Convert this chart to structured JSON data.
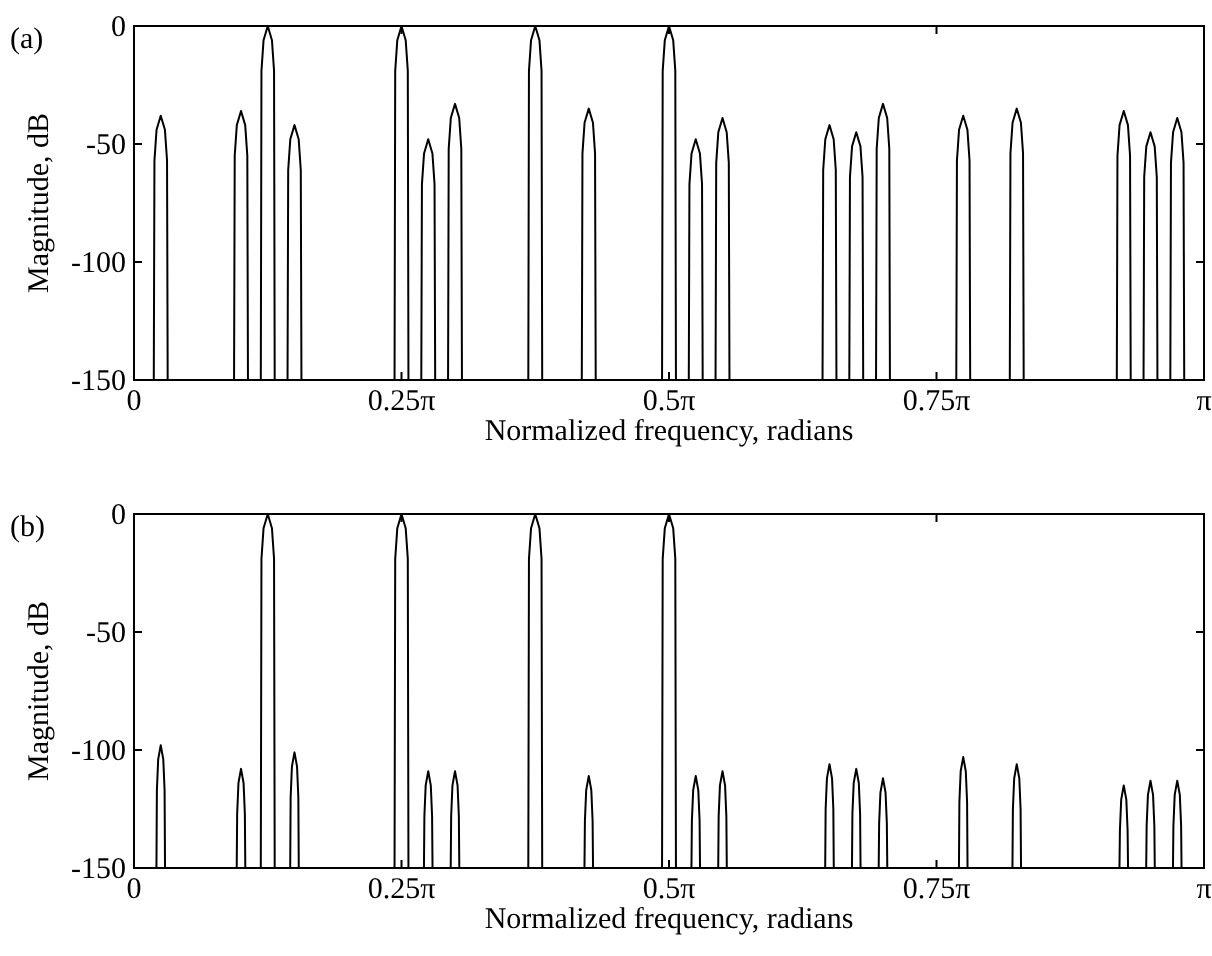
{
  "chart_data": [
    {
      "type": "line",
      "annotations": [
        "(a)"
      ],
      "xlabel": "Normalized frequency, radians",
      "ylabel": "Magnitude, dB",
      "xlim": [
        0,
        3.1416
      ],
      "ylim": [
        -150,
        0
      ],
      "xticks": [
        0,
        {
          "value": 0.7854,
          "label": "0.25π"
        },
        {
          "value": 1.5708,
          "label": "0.5π"
        },
        {
          "value": 2.3562,
          "label": "0.75π"
        },
        {
          "value": 3.1416,
          "label": "π"
        }
      ],
      "yticks": [
        0,
        -50,
        -100,
        -150
      ],
      "grid": false,
      "marker": "none",
      "line_style": "solid",
      "series": [
        {
          "color": "#000000",
          "x": [
            0.0581,
            0.06,
            0.0662,
            0.0785,
            0.0908,
            0.097,
            0.0989,
            0.2938,
            0.2957,
            0.3019,
            0.3142,
            0.3265,
            0.3327,
            0.3346,
            0.3723,
            0.3742,
            0.3804,
            0.3927,
            0.405,
            0.4112,
            0.4131,
            0.4508,
            0.4527,
            0.4589,
            0.4712,
            0.4835,
            0.4897,
            0.4916,
            0.765,
            0.7669,
            0.7731,
            0.7854,
            0.7977,
            0.8039,
            0.8058,
            0.8435,
            0.8454,
            0.8516,
            0.8639,
            0.8762,
            0.8824,
            0.8843,
            0.9221,
            0.924,
            0.9302,
            0.9425,
            0.9548,
            0.961,
            0.9629,
            1.1577,
            1.1596,
            1.1658,
            1.1781,
            1.1904,
            1.1966,
            1.1985,
            1.3148,
            1.3167,
            1.3229,
            1.3352,
            1.3475,
            1.3537,
            1.3556,
            1.5504,
            1.5523,
            1.5585,
            1.5708,
            1.5831,
            1.5893,
            1.5912,
            1.6289,
            1.6308,
            1.637,
            1.6493,
            1.6616,
            1.6678,
            1.6697,
            1.7075,
            1.7094,
            1.7156,
            1.7279,
            1.7402,
            1.7464,
            1.7483,
            2.0216,
            2.0235,
            2.0297,
            2.042,
            2.0543,
            2.0605,
            2.0624,
            2.1002,
            2.1021,
            2.1083,
            2.1206,
            2.1329,
            2.1391,
            2.141,
            2.1787,
            2.1806,
            2.1868,
            2.1991,
            2.2114,
            2.2176,
            2.2195,
            2.4143,
            2.4162,
            2.4224,
            2.4347,
            2.447,
            2.4532,
            2.4551,
            2.5714,
            2.5733,
            2.5795,
            2.5918,
            2.6041,
            2.6103,
            2.6122,
            2.8856,
            2.8875,
            2.8937,
            2.906,
            2.9183,
            2.9245,
            2.9264,
            2.9641,
            2.966,
            2.9722,
            2.9845,
            2.9968,
            3.003,
            3.0049,
            3.0427,
            3.0446,
            3.0508,
            3.0631,
            3.0754,
            3.0816,
            3.0835
          ],
          "values": [
            -150,
            -57,
            -44,
            -38,
            -44,
            -57,
            -150,
            -150,
            -55,
            -42,
            -36,
            -42,
            -55,
            -150,
            -150,
            -19,
            -6,
            0,
            -6,
            -19,
            -150,
            -150,
            -61,
            -48,
            -42,
            -48,
            -61,
            -150,
            -150,
            -19,
            -6,
            0,
            -6,
            -19,
            -150,
            -150,
            -67,
            -54,
            -48,
            -54,
            -67,
            -150,
            -150,
            -52,
            -39,
            -33,
            -39,
            -52,
            -150,
            -150,
            -19,
            -6,
            0,
            -6,
            -19,
            -150,
            -150,
            -54,
            -41,
            -35,
            -41,
            -54,
            -150,
            -150,
            -19,
            -6,
            0,
            -6,
            -19,
            -150,
            -150,
            -67,
            -54,
            -48,
            -54,
            -67,
            -150,
            -150,
            -58,
            -45,
            -39,
            -45,
            -58,
            -150,
            -150,
            -61,
            -48,
            -42,
            -48,
            -61,
            -150,
            -150,
            -64,
            -51,
            -45,
            -51,
            -64,
            -150,
            -150,
            -52,
            -39,
            -33,
            -39,
            -52,
            -150,
            -150,
            -57,
            -44,
            -38,
            -44,
            -57,
            -150,
            -150,
            -54,
            -41,
            -35,
            -41,
            -54,
            -150,
            -150,
            -55,
            -42,
            -36,
            -42,
            -55,
            -150,
            -150,
            -64,
            -51,
            -45,
            -51,
            -64,
            -150,
            -150,
            -58,
            -45,
            -39,
            -45,
            -58,
            -150
          ]
        }
      ]
    },
    {
      "type": "line",
      "annotations": [
        "(b)"
      ],
      "xlabel": "Normalized frequency, radians",
      "ylabel": "Magnitude, dB",
      "xlim": [
        0,
        3.1416
      ],
      "ylim": [
        -150,
        0
      ],
      "xticks": [
        0,
        {
          "value": 0.7854,
          "label": "0.25π"
        },
        {
          "value": 1.5708,
          "label": "0.5π"
        },
        {
          "value": 2.3562,
          "label": "0.75π"
        },
        {
          "value": 3.1416,
          "label": "π"
        }
      ],
      "yticks": [
        0,
        -50,
        -100,
        -150
      ],
      "grid": false,
      "marker": "none",
      "line_style": "solid",
      "series": [
        {
          "color": "#000000",
          "x": [
            0.0659,
            0.0672,
            0.071,
            0.0785,
            0.086,
            0.0898,
            0.0911,
            0.3016,
            0.3029,
            0.3067,
            0.3142,
            0.3217,
            0.3255,
            0.3268,
            0.3723,
            0.3742,
            0.3804,
            0.3927,
            0.405,
            0.4112,
            0.4131,
            0.4586,
            0.4599,
            0.4637,
            0.4712,
            0.4787,
            0.4825,
            0.4838,
            0.765,
            0.7669,
            0.7731,
            0.7854,
            0.7977,
            0.8039,
            0.8058,
            0.8513,
            0.8526,
            0.8564,
            0.8639,
            0.8714,
            0.8752,
            0.8765,
            0.9299,
            0.9312,
            0.935,
            0.9425,
            0.95,
            0.9538,
            0.9551,
            1.1577,
            1.1596,
            1.1658,
            1.1781,
            1.1904,
            1.1966,
            1.1985,
            1.3226,
            1.3239,
            1.3277,
            1.3352,
            1.3427,
            1.3465,
            1.3478,
            1.5504,
            1.5523,
            1.5585,
            1.5708,
            1.5831,
            1.5893,
            1.5912,
            1.6367,
            1.638,
            1.6418,
            1.6493,
            1.6568,
            1.6606,
            1.6619,
            1.7153,
            1.7166,
            1.7204,
            1.7279,
            1.7354,
            1.7392,
            1.7405,
            2.0294,
            2.0307,
            2.0345,
            2.042,
            2.0495,
            2.0533,
            2.0546,
            2.108,
            2.1093,
            2.1131,
            2.1206,
            2.1281,
            2.1319,
            2.1332,
            2.1865,
            2.1878,
            2.1916,
            2.1991,
            2.2066,
            2.2104,
            2.2117,
            2.4221,
            2.4234,
            2.4272,
            2.4347,
            2.4422,
            2.446,
            2.4473,
            2.5792,
            2.5805,
            2.5843,
            2.5918,
            2.5993,
            2.6031,
            2.6044,
            2.8934,
            2.8947,
            2.8985,
            2.906,
            2.9135,
            2.9173,
            2.9186,
            2.9719,
            2.9732,
            2.977,
            2.9845,
            2.992,
            2.9958,
            2.9971,
            3.0505,
            3.0518,
            3.0556,
            3.0631,
            3.0706,
            3.0744,
            3.0757
          ],
          "values": [
            -150,
            -117,
            -104,
            -98,
            -104,
            -117,
            -150,
            -150,
            -127,
            -114,
            -108,
            -114,
            -127,
            -150,
            -150,
            -19,
            -6,
            0,
            -6,
            -19,
            -150,
            -150,
            -120,
            -107,
            -101,
            -107,
            -120,
            -150,
            -150,
            -19,
            -6,
            0,
            -6,
            -19,
            -150,
            -150,
            -128,
            -115,
            -109,
            -115,
            -128,
            -150,
            -150,
            -128,
            -115,
            -109,
            -115,
            -128,
            -150,
            -150,
            -19,
            -6,
            0,
            -6,
            -19,
            -150,
            -150,
            -130,
            -117,
            -111,
            -117,
            -130,
            -150,
            -150,
            -19,
            -6,
            0,
            -6,
            -19,
            -150,
            -150,
            -130,
            -117,
            -111,
            -117,
            -130,
            -150,
            -150,
            -128,
            -115,
            -109,
            -115,
            -128,
            -150,
            -150,
            -125,
            -112,
            -106,
            -112,
            -125,
            -150,
            -150,
            -127,
            -114,
            -108,
            -114,
            -127,
            -150,
            -150,
            -131,
            -118,
            -112,
            -118,
            -131,
            -150,
            -150,
            -122,
            -109,
            -103,
            -109,
            -122,
            -150,
            -150,
            -125,
            -112,
            -106,
            -112,
            -125,
            -150,
            -150,
            -134,
            -121,
            -115,
            -121,
            -134,
            -150,
            -150,
            -132,
            -119,
            -113,
            -119,
            -132,
            -150,
            -150,
            -132,
            -119,
            -113,
            -119,
            -132,
            -150
          ]
        }
      ]
    }
  ]
}
